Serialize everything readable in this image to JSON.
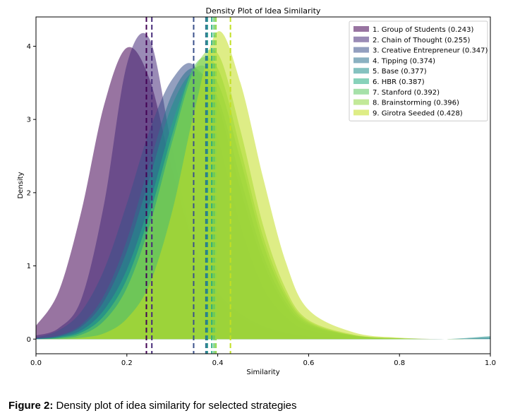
{
  "chart_data": {
    "type": "area",
    "title": "Density Plot of Idea Similarity",
    "xlabel": "Similarity",
    "ylabel": "Density",
    "xlim": [
      0.0,
      1.0
    ],
    "ylim": [
      -0.2,
      4.4
    ],
    "xticks": [
      "0.0",
      "0.2",
      "0.4",
      "0.6",
      "0.8",
      "1.0"
    ],
    "yticks": [
      "0",
      "1",
      "2",
      "3",
      "4"
    ],
    "grid": false,
    "legend_position": "top-right",
    "series": [
      {
        "name": "1. Group of Students (0.243)",
        "mean": 0.243,
        "color": "#440154",
        "x": [
          0.0,
          0.05,
          0.1,
          0.15,
          0.2,
          0.25,
          0.3,
          0.35,
          0.4,
          0.45,
          0.5,
          0.55,
          0.6,
          0.7,
          0.8,
          0.9,
          1.0
        ],
        "y": [
          0.18,
          0.65,
          1.75,
          3.2,
          3.98,
          3.55,
          2.3,
          1.25,
          0.65,
          0.35,
          0.18,
          0.09,
          0.04,
          0.01,
          0.0,
          0.0,
          0.0
        ]
      },
      {
        "name": "2. Chain of Thought (0.255)",
        "mean": 0.255,
        "color": "#472c7a",
        "x": [
          0.0,
          0.05,
          0.1,
          0.15,
          0.2,
          0.25,
          0.3,
          0.35,
          0.4,
          0.45,
          0.5,
          0.55,
          0.6,
          0.7,
          0.8,
          0.9,
          1.0
        ],
        "y": [
          0.05,
          0.15,
          0.55,
          1.85,
          3.75,
          4.1,
          2.6,
          1.25,
          0.6,
          0.3,
          0.15,
          0.07,
          0.03,
          0.01,
          0.0,
          0.0,
          0.0
        ]
      },
      {
        "name": "3. Creative Entrepreneur (0.347)",
        "mean": 0.347,
        "color": "#3b518b",
        "x": [
          0.0,
          0.05,
          0.1,
          0.15,
          0.2,
          0.25,
          0.3,
          0.35,
          0.4,
          0.45,
          0.5,
          0.55,
          0.6,
          0.7,
          0.8,
          0.9,
          1.0
        ],
        "y": [
          0.02,
          0.12,
          0.38,
          0.95,
          1.85,
          2.85,
          3.55,
          3.72,
          2.75,
          1.55,
          0.7,
          0.3,
          0.12,
          0.03,
          0.01,
          0.0,
          0.0
        ]
      },
      {
        "name": "4. Tipping (0.374)",
        "mean": 0.374,
        "color": "#2c718e",
        "x": [
          0.0,
          0.05,
          0.1,
          0.15,
          0.2,
          0.25,
          0.3,
          0.35,
          0.4,
          0.45,
          0.5,
          0.55,
          0.6,
          0.7,
          0.8,
          0.9,
          1.0
        ],
        "y": [
          0.01,
          0.05,
          0.2,
          0.6,
          1.35,
          2.4,
          3.35,
          3.7,
          3.2,
          2.05,
          1.05,
          0.45,
          0.18,
          0.04,
          0.01,
          0.0,
          0.02
        ]
      },
      {
        "name": "5. Base (0.377)",
        "mean": 0.377,
        "color": "#21908d",
        "x": [
          0.0,
          0.05,
          0.1,
          0.15,
          0.2,
          0.25,
          0.3,
          0.35,
          0.4,
          0.45,
          0.5,
          0.55,
          0.6,
          0.7,
          0.8,
          0.9,
          1.0
        ],
        "y": [
          0.01,
          0.04,
          0.17,
          0.52,
          1.2,
          2.2,
          3.2,
          3.65,
          3.3,
          2.2,
          1.15,
          0.5,
          0.2,
          0.05,
          0.01,
          0.0,
          0.04
        ]
      },
      {
        "name": "6. HBR (0.387)",
        "mean": 0.387,
        "color": "#27ad81",
        "x": [
          0.0,
          0.05,
          0.1,
          0.15,
          0.2,
          0.25,
          0.3,
          0.35,
          0.4,
          0.45,
          0.5,
          0.55,
          0.6,
          0.7,
          0.8,
          0.9,
          1.0
        ],
        "y": [
          0.0,
          0.03,
          0.12,
          0.4,
          0.95,
          1.85,
          2.95,
          3.7,
          3.5,
          2.45,
          1.3,
          0.57,
          0.22,
          0.05,
          0.01,
          0.0,
          0.0
        ]
      },
      {
        "name": "7. Stanford (0.392)",
        "mean": 0.392,
        "color": "#5cc863",
        "x": [
          0.0,
          0.05,
          0.1,
          0.15,
          0.2,
          0.25,
          0.3,
          0.35,
          0.4,
          0.45,
          0.5,
          0.55,
          0.6,
          0.7,
          0.8,
          0.9,
          1.0
        ],
        "y": [
          0.0,
          0.02,
          0.09,
          0.32,
          0.82,
          1.7,
          2.8,
          3.75,
          3.7,
          2.6,
          1.4,
          0.62,
          0.24,
          0.05,
          0.01,
          0.0,
          0.0
        ]
      },
      {
        "name": "8. Brainstorming (0.396)",
        "mean": 0.396,
        "color": "#8fd744",
        "x": [
          0.0,
          0.05,
          0.1,
          0.15,
          0.2,
          0.25,
          0.3,
          0.35,
          0.4,
          0.45,
          0.5,
          0.55,
          0.6,
          0.7,
          0.8,
          0.9,
          1.0
        ],
        "y": [
          0.0,
          0.01,
          0.06,
          0.25,
          0.7,
          1.55,
          2.7,
          3.7,
          3.9,
          2.85,
          1.55,
          0.68,
          0.26,
          0.06,
          0.01,
          0.0,
          0.0
        ]
      },
      {
        "name": "9. Girotra Seeded (0.428)",
        "mean": 0.428,
        "color": "#c2df23",
        "x": [
          0.0,
          0.05,
          0.1,
          0.15,
          0.2,
          0.25,
          0.3,
          0.35,
          0.4,
          0.45,
          0.5,
          0.55,
          0.6,
          0.7,
          0.8,
          0.9,
          1.0
        ],
        "y": [
          0.0,
          0.0,
          0.02,
          0.08,
          0.28,
          0.75,
          1.75,
          3.15,
          4.2,
          3.5,
          2.2,
          1.05,
          0.4,
          0.09,
          0.02,
          0.0,
          0.0
        ]
      }
    ]
  },
  "caption": {
    "label": "Figure 2:",
    "text": " Density plot of idea similarity for selected strategies"
  }
}
